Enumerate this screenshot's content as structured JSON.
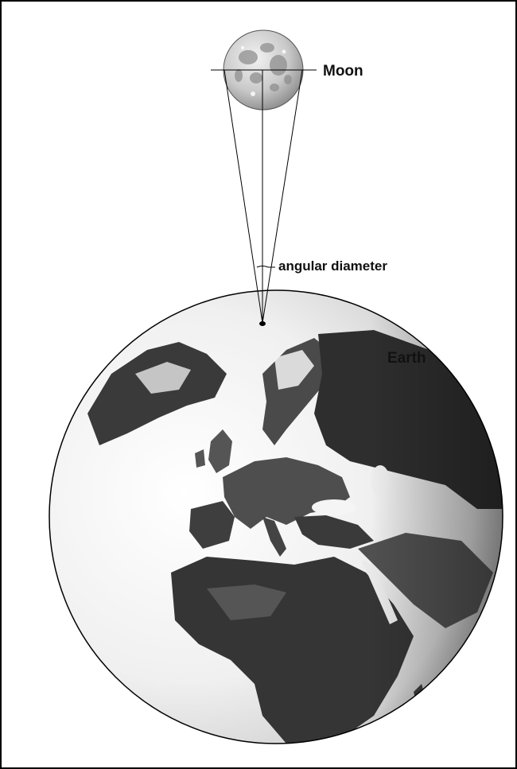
{
  "labels": {
    "moon": "Moon",
    "angular_diameter": "angular diameter",
    "earth": "Earth"
  },
  "colors": {
    "line": "#000000",
    "moon_light": "#e6e6e6",
    "moon_dark": "#8a8a8a",
    "ocean_light": "#ffffff",
    "ocean_dark": "#cfcfcf",
    "land_dark": "#2e2e2e",
    "land_mid": "#5a5a5a"
  }
}
